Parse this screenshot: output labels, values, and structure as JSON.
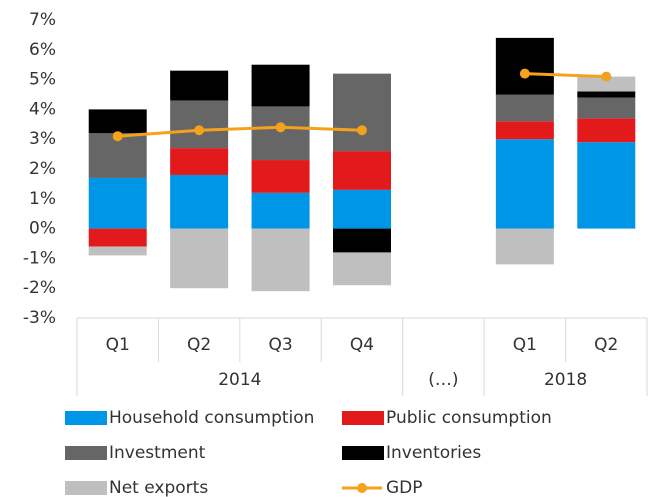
{
  "chart_data": {
    "type": "bar",
    "stacked": true,
    "categories": [
      "Q1",
      "Q2",
      "Q3",
      "Q4",
      null,
      "Q1",
      "Q2"
    ],
    "groups": [
      {
        "label": "2014",
        "size": 4
      },
      {
        "label": "(…)",
        "size": 1
      },
      {
        "label": "2018",
        "size": 2
      }
    ],
    "series": [
      {
        "name": "Household consumption",
        "color": "#0096e8",
        "values": [
          1.7,
          1.8,
          1.2,
          1.3,
          null,
          3.0,
          2.9
        ]
      },
      {
        "name": "Public consumption",
        "color": "#e31a1c",
        "values": [
          -0.6,
          0.9,
          1.1,
          1.3,
          null,
          0.6,
          0.8
        ]
      },
      {
        "name": "Investment",
        "color": "#666666",
        "values": [
          1.5,
          1.6,
          1.8,
          2.6,
          null,
          0.9,
          0.7
        ]
      },
      {
        "name": "Inventories",
        "color": "#000000",
        "values": [
          0.8,
          1.0,
          1.4,
          -0.8,
          null,
          1.9,
          0.2
        ]
      },
      {
        "name": "Net exports",
        "color": "#bfbfbf",
        "values": [
          -0.3,
          -2.0,
          -2.1,
          -1.1,
          null,
          -1.2,
          0.5
        ]
      },
      {
        "name": "GDP",
        "color": "#f4a21c",
        "type": "line",
        "values": [
          3.1,
          3.3,
          3.4,
          3.3,
          null,
          5.2,
          5.1
        ]
      }
    ],
    "ylim": [
      -3,
      7
    ],
    "yticks": [
      {
        "value": -3,
        "label": "-3%"
      },
      {
        "value": -2,
        "label": "-2%"
      },
      {
        "value": -1,
        "label": "-1%"
      },
      {
        "value": 0,
        "label": "0%"
      },
      {
        "value": 1,
        "label": "1%"
      },
      {
        "value": 2,
        "label": "2%"
      },
      {
        "value": 3,
        "label": "3%"
      },
      {
        "value": 4,
        "label": "4%"
      },
      {
        "value": 5,
        "label": "5%"
      },
      {
        "value": 6,
        "label": "6%"
      },
      {
        "value": 7,
        "label": "7%"
      }
    ],
    "legend": "bottom"
  }
}
